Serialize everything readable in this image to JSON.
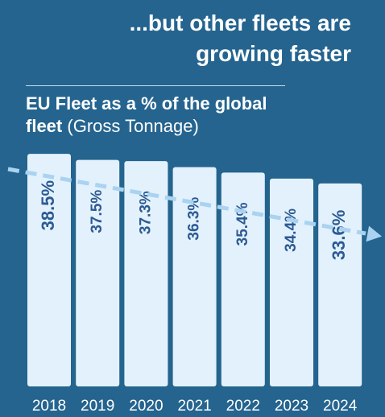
{
  "header": {
    "headline_line1": "...but other fleets are",
    "headline_line2": "growing faster",
    "chart_title_bold": "EU Fleet as a % of the global",
    "chart_title_bold2": "fleet",
    "chart_title_light": "(Gross Tonnage)"
  },
  "colors": {
    "background": "#24648f",
    "bar": "#e3f1fc",
    "bar_label": "#2c5a93",
    "trend_arrow": "#a9d3f0",
    "axis_text": "#ffffff"
  },
  "chart_data": {
    "type": "bar",
    "title": "EU Fleet as a % of the global fleet (Gross Tonnage)",
    "categories": [
      "2018",
      "2019",
      "2020",
      "2021",
      "2022",
      "2023",
      "2024"
    ],
    "values": [
      38.5,
      37.5,
      37.3,
      36.3,
      35.4,
      34.4,
      33.6
    ],
    "value_labels": [
      "38.5%",
      "37.5%",
      "37.3%",
      "36.3%",
      "35.4%",
      "34.4%",
      "33.6%"
    ],
    "ylim": [
      0,
      40.25
    ],
    "grid": false,
    "trend": "downward dashed arrow"
  }
}
